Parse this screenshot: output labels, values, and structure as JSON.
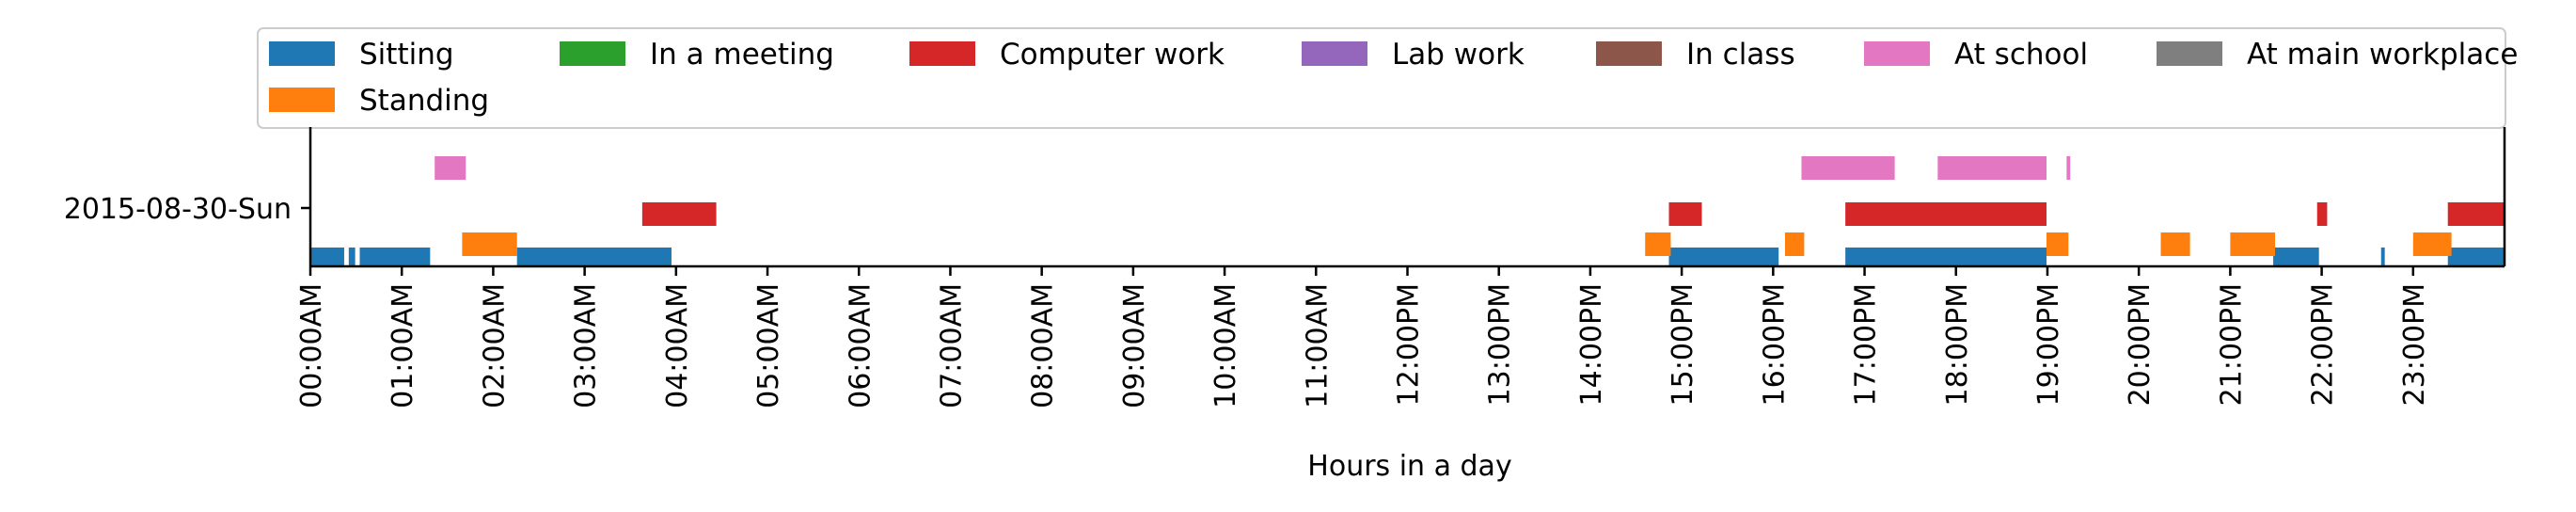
{
  "chart_data": {
    "type": "timeline",
    "xlabel": "Hours in a day",
    "ylabel": "",
    "y_category": "2015-08-30-Sun",
    "x_range_hours": [
      0,
      24
    ],
    "x_ticks": [
      "00:00AM",
      "01:00AM",
      "02:00AM",
      "03:00AM",
      "04:00AM",
      "05:00AM",
      "06:00AM",
      "07:00AM",
      "08:00AM",
      "09:00AM",
      "10:00AM",
      "11:00AM",
      "12:00PM",
      "13:00PM",
      "14:00PM",
      "15:00PM",
      "16:00PM",
      "17:00PM",
      "18:00PM",
      "19:00PM",
      "20:00PM",
      "21:00PM",
      "22:00PM",
      "23:00PM"
    ],
    "legend_placement": "top",
    "legend": [
      {
        "name": "Sitting",
        "color": "#1f77b4"
      },
      {
        "name": "In a meeting",
        "color": "#2ca02c"
      },
      {
        "name": "Computer work",
        "color": "#d62728"
      },
      {
        "name": "Lab work",
        "color": "#9467bd"
      },
      {
        "name": "In class",
        "color": "#8c564b"
      },
      {
        "name": "At school",
        "color": "#e377c2"
      },
      {
        "name": "At main workplace",
        "color": "#7f7f7f"
      },
      {
        "name": "Standing",
        "color": "#ff7f0e"
      }
    ],
    "series": [
      {
        "name": "Sitting",
        "color": "#1f77b4",
        "lane": 0,
        "intervals": [
          [
            0.0,
            0.37
          ],
          [
            0.42,
            0.49
          ],
          [
            0.54,
            1.31
          ],
          [
            2.26,
            3.95
          ],
          [
            14.86,
            16.06
          ],
          [
            16.79,
            18.99
          ],
          [
            21.47,
            21.97
          ],
          [
            22.65,
            22.69
          ],
          [
            23.38,
            24.0
          ]
        ]
      },
      {
        "name": "Standing",
        "color": "#ff7f0e",
        "lane": 1,
        "intervals": [
          [
            1.66,
            2.26
          ],
          [
            14.6,
            14.88
          ],
          [
            16.13,
            16.34
          ],
          [
            18.99,
            19.23
          ],
          [
            20.24,
            20.56
          ],
          [
            21.0,
            21.49
          ],
          [
            23.0,
            23.28
          ],
          [
            23.28,
            23.42
          ]
        ]
      },
      {
        "name": "Computer work",
        "color": "#d62728",
        "lane": 2,
        "intervals": [
          [
            3.63,
            4.44
          ],
          [
            14.86,
            15.22
          ],
          [
            16.79,
            18.99
          ],
          [
            21.95,
            22.06
          ],
          [
            23.38,
            24.0
          ]
        ]
      },
      {
        "name": "At school",
        "color": "#e377c2",
        "lane": 3,
        "intervals": [
          [
            1.36,
            1.7
          ],
          [
            16.31,
            17.33
          ],
          [
            17.8,
            18.99
          ],
          [
            19.21,
            19.25
          ]
        ]
      }
    ]
  }
}
